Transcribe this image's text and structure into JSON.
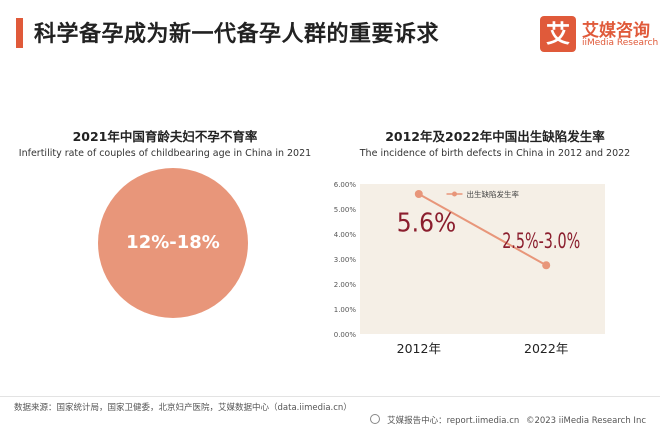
{
  "header": {
    "title": "科学备孕成为新一代备孕人群的重要诉求",
    "logo_mark": "艾",
    "logo_cn": "艾媒咨询",
    "logo_en": "iiMedia Research"
  },
  "left_panel": {
    "title": "2021年中国育龄夫妇不孕不育率",
    "subtitle": "Infertility rate of couples of childbearing age in China in 2021",
    "value_label": "12%-18%"
  },
  "chart_data": {
    "type": "line",
    "title": "2012年及2022年中国出生缺陷发生率",
    "subtitle": "The incidence of birth defects in China in 2012 and 2022",
    "categories": [
      "2012年",
      "2022年"
    ],
    "series": [
      {
        "name": "出生缺陷发生率",
        "values": [
          5.6,
          2.75
        ],
        "data_labels": [
          "5.6%",
          "2.5%-3.0%"
        ]
      }
    ],
    "yticks": [
      "0.00%",
      "1.00%",
      "2.00%",
      "3.00%",
      "4.00%",
      "5.00%",
      "6.00%"
    ],
    "ylim": [
      0,
      6
    ],
    "xlabel": "",
    "ylabel": "",
    "legend": "top-center",
    "colors": {
      "line": "#e8967a",
      "label": "#8b1e2e",
      "bg": "#f5efe6"
    }
  },
  "footer": {
    "source": "数据来源：国家统计局，国家卫健委，北京妇产医院，艾媒数据中心（data.iimedia.cn）",
    "report_center": "艾媒报告中心：report.iimedia.cn",
    "copyright": "©2023  iiMedia Research  Inc"
  }
}
